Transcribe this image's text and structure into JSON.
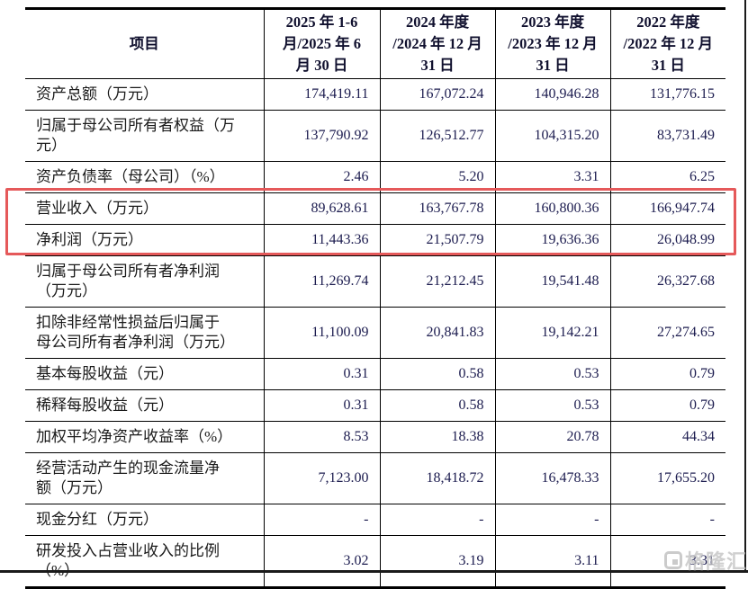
{
  "table": {
    "columns": [
      {
        "label": "项目"
      },
      {
        "label": "2025 年 1-6\n月/2025 年 6\n月 30 日"
      },
      {
        "label": "2024 年度\n/2024 年 12 月\n31 日"
      },
      {
        "label": "2023 年度\n/2023 年 12 月\n31 日"
      },
      {
        "label": "2022 年度\n/2022 年 12 月\n31 日"
      }
    ],
    "rows": [
      {
        "label": "资产总额（万元）",
        "values": [
          "174,419.11",
          "167,072.24",
          "140,946.28",
          "131,776.15"
        ],
        "highlighted": false
      },
      {
        "label": "归属于母公司所有者权益（万\n元）",
        "values": [
          "137,790.92",
          "126,512.77",
          "104,315.20",
          "83,731.49"
        ],
        "highlighted": false
      },
      {
        "label": "资产负债率（母公司）（%）",
        "values": [
          "2.46",
          "5.20",
          "3.31",
          "6.25"
        ],
        "highlighted": false
      },
      {
        "label": "营业收入（万元）",
        "values": [
          "89,628.61",
          "163,767.78",
          "160,800.36",
          "166,947.74"
        ],
        "highlighted": true
      },
      {
        "label": "净利润（万元）",
        "values": [
          "11,443.36",
          "21,507.79",
          "19,636.36",
          "26,048.99"
        ],
        "highlighted": true
      },
      {
        "label": "归属于母公司所有者净利润\n（万元）",
        "values": [
          "11,269.74",
          "21,212.45",
          "19,541.48",
          "26,327.68"
        ],
        "highlighted": false
      },
      {
        "label": "扣除非经常性损益后归属于\n母公司所有者净利润（万元）",
        "values": [
          "11,100.09",
          "20,841.83",
          "19,142.21",
          "27,274.65"
        ],
        "highlighted": false
      },
      {
        "label": "基本每股收益（元）",
        "values": [
          "0.31",
          "0.58",
          "0.53",
          "0.79"
        ],
        "highlighted": false
      },
      {
        "label": "稀释每股收益（元）",
        "values": [
          "0.31",
          "0.58",
          "0.53",
          "0.79"
        ],
        "highlighted": false
      },
      {
        "label": "加权平均净资产收益率（%）",
        "values": [
          "8.53",
          "18.38",
          "20.78",
          "44.34"
        ],
        "highlighted": false
      },
      {
        "label": "经营活动产生的现金流量净\n额（万元）",
        "values": [
          "7,123.00",
          "18,418.72",
          "16,478.33",
          "17,655.20"
        ],
        "highlighted": false
      },
      {
        "label": "现金分红（万元）",
        "values": [
          "-",
          "-",
          "-",
          "-"
        ],
        "highlighted": false
      },
      {
        "label": "研发投入占营业收入的比例\n（%）",
        "values": [
          "3.02",
          "3.19",
          "3.11",
          "3.31"
        ],
        "highlighted": false
      }
    ]
  },
  "annotation": {
    "type": "highlight-box",
    "color": "#e5595a",
    "highlighted_rows": [
      "营业收入（万元）",
      "净利润（万元）"
    ]
  },
  "watermark": {
    "text": "格隆汇",
    "icon": "gelonghui-logo",
    "color": "#c4c4c4"
  },
  "colors": {
    "table_border": "#000000",
    "label_text": "#1a1a1a",
    "number_text": "#1c1c4f",
    "background": "#ffffff"
  }
}
